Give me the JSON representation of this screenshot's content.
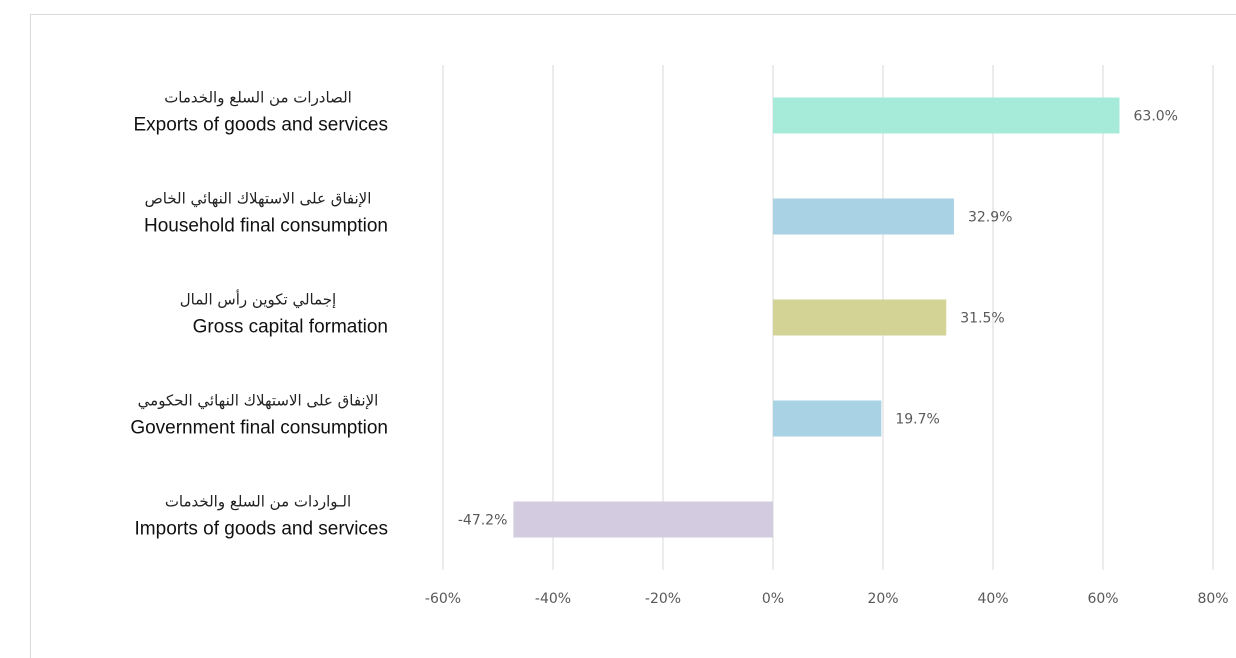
{
  "chart_data": {
    "type": "bar",
    "orientation": "horizontal",
    "categories": [
      {
        "ar": "الصادرات من السلع والخدمات",
        "en": "Exports of goods and services",
        "color": "#a6ebd9"
      },
      {
        "ar": "الإنفاق على الاستهلاك النهائي الخاص",
        "en": "Household final consumption",
        "color": "#a9d2e5"
      },
      {
        "ar": "إجمالي تكوين رأس المال",
        "en": "Gross capital formation",
        "color": "#d2d394"
      },
      {
        "ar": "الإنفاق على الاستهلاك النهائي الحكومي",
        "en": "Government final consumption",
        "color": "#a9d2e5"
      },
      {
        "ar": "الـواردات من السلع والخدمات",
        "en": "Imports of goods and services",
        "color": "#d3cbe0"
      }
    ],
    "values": [
      63.0,
      32.9,
      31.5,
      19.7,
      -47.2
    ],
    "value_labels": [
      "63.0%",
      "32.9%",
      "31.5%",
      "19.7%",
      "-47.2%"
    ],
    "xlim": [
      -60,
      80
    ],
    "xticks": [
      -60,
      -40,
      -20,
      0,
      20,
      40,
      60,
      80
    ],
    "xtick_labels": [
      "-60%",
      "-40%",
      "-20%",
      "0%",
      "20%",
      "40%",
      "60%",
      "80%"
    ],
    "grid": true,
    "legend": "none"
  }
}
